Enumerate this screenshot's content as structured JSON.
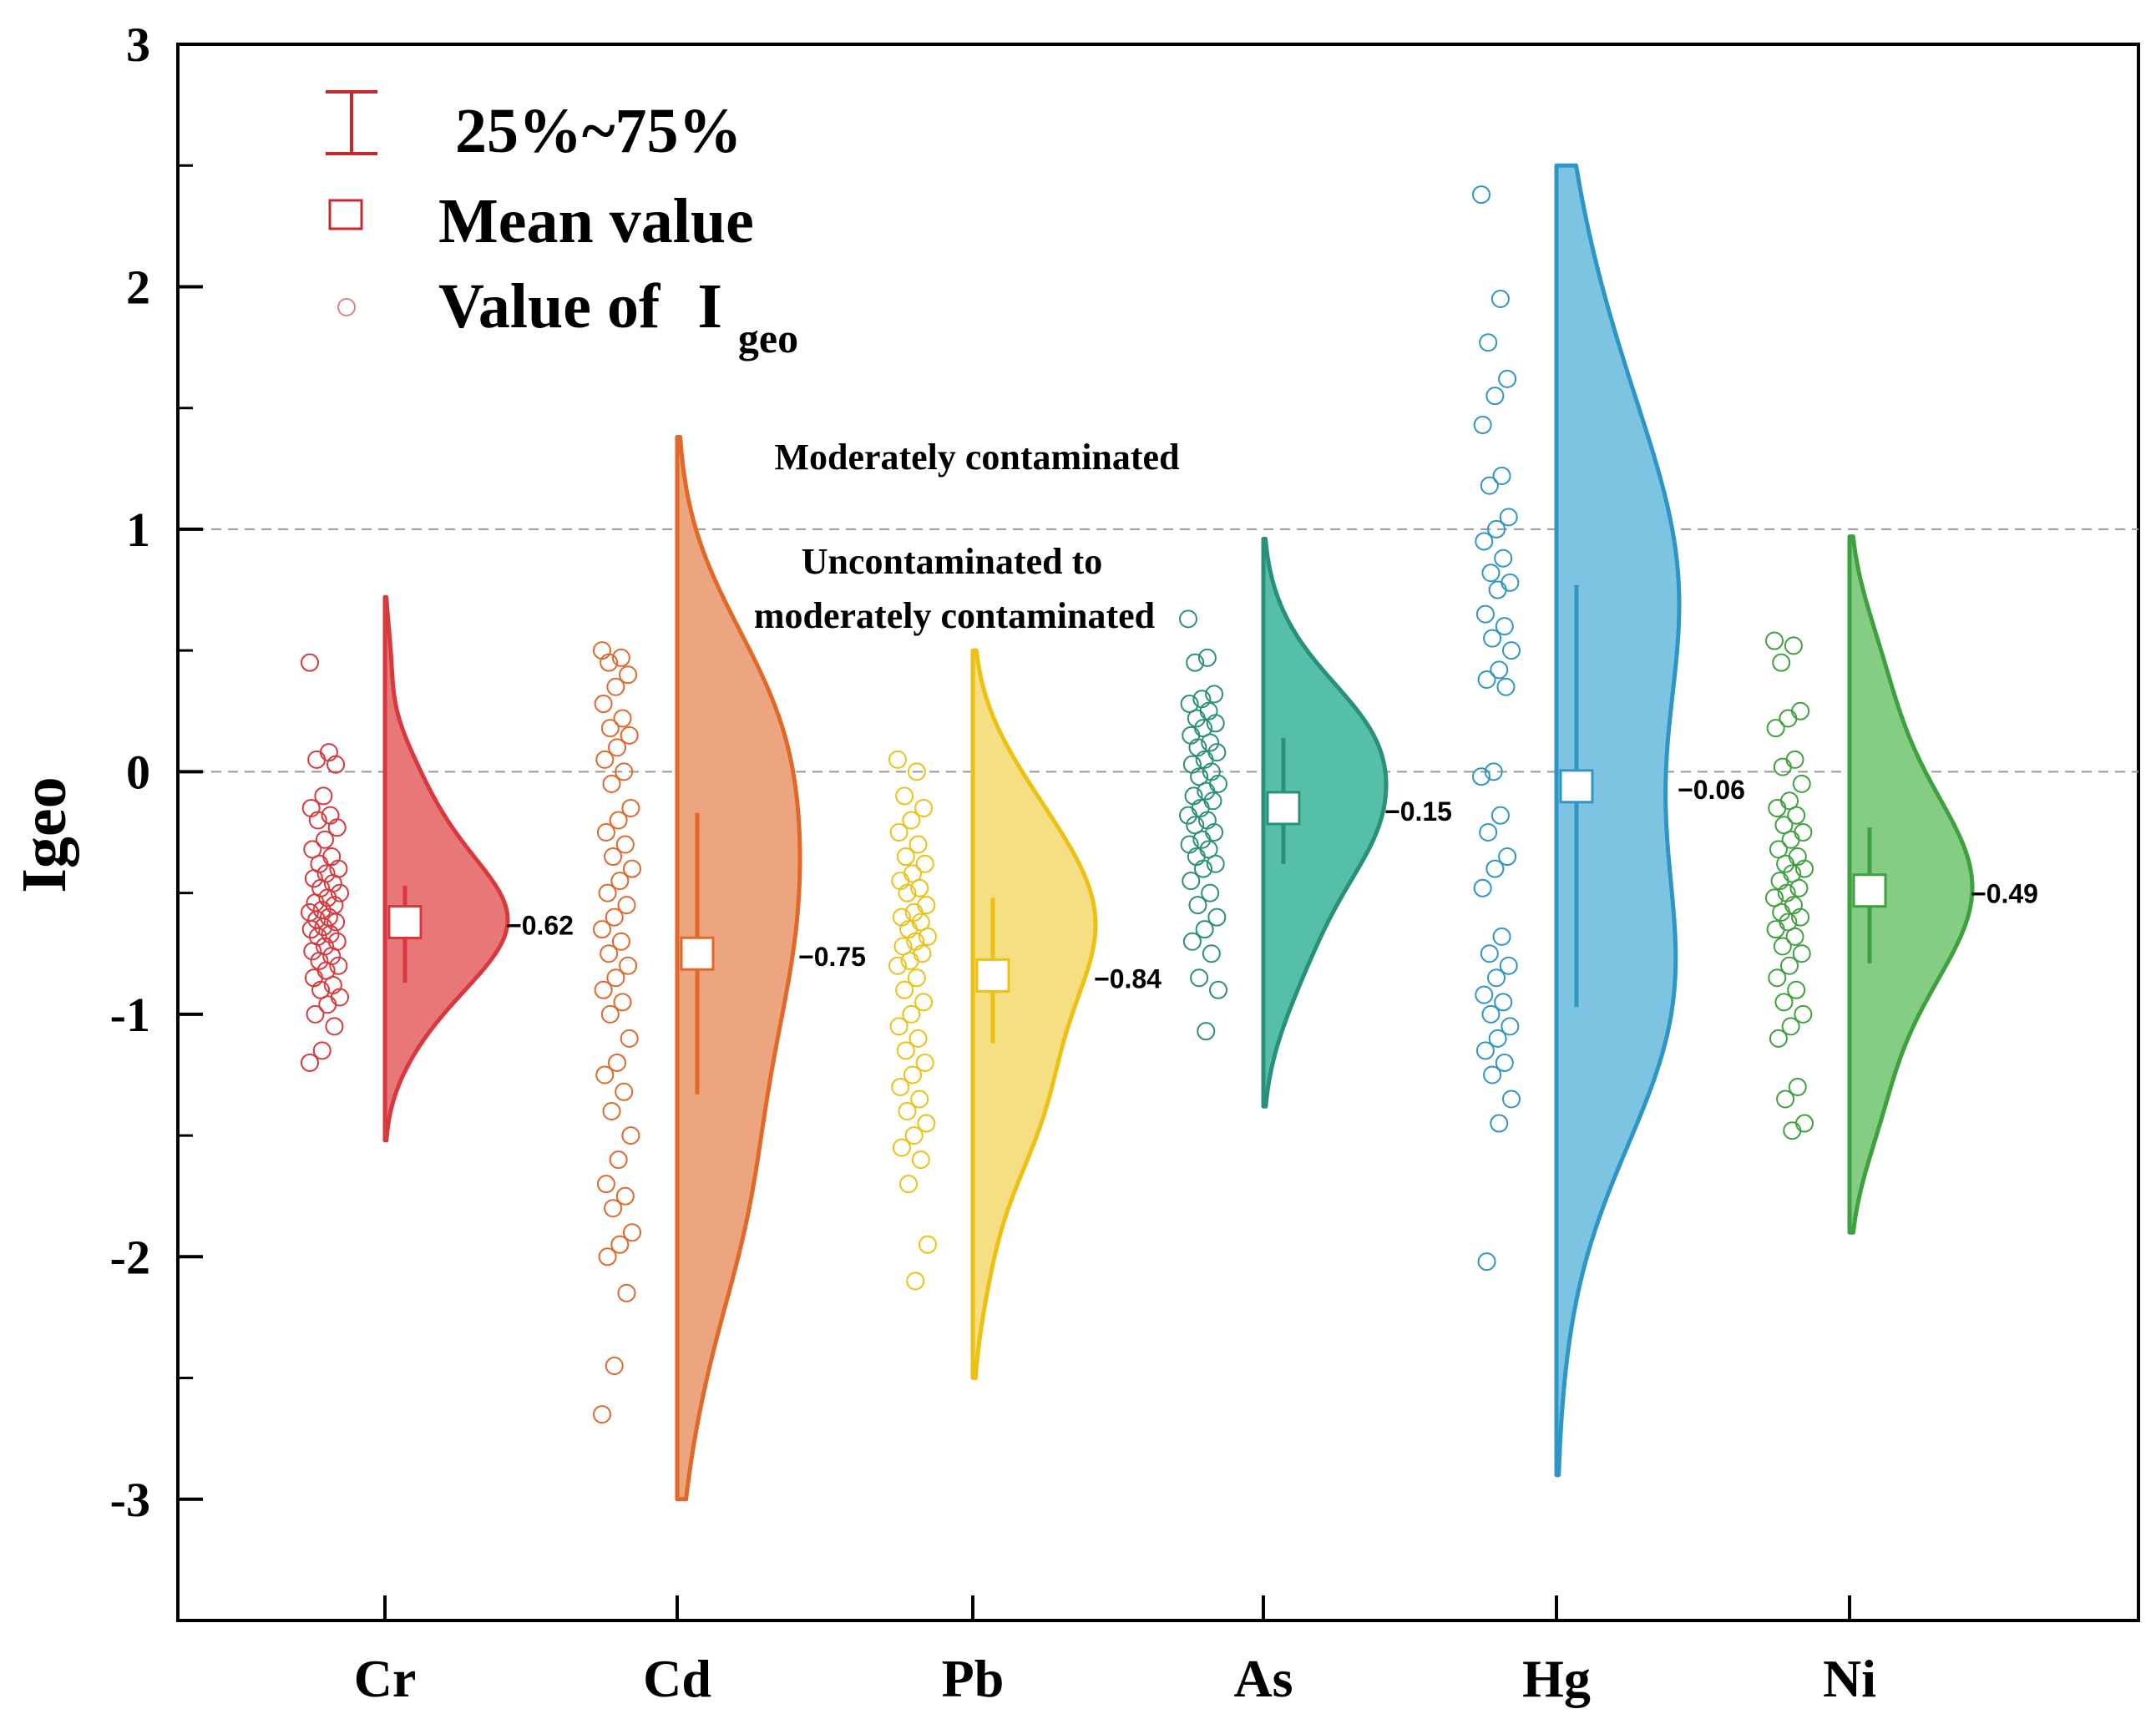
{
  "chart_data": {
    "type": "violin",
    "ylabel": "Igeo",
    "ylim": [
      -3.5,
      3
    ],
    "yticks": [
      -3,
      -2,
      -1,
      0,
      1,
      2,
      3
    ],
    "reference_lines": [
      0,
      1
    ],
    "annotations": {
      "moderate": "Moderately contaminated",
      "uncontaminated_line1": "Uncontaminated to",
      "uncontaminated_line2": "moderately contaminated"
    },
    "legend": {
      "range_label": "25%~75%",
      "mean_label": "Mean value",
      "value_label_prefix": "Value of",
      "value_label_base": "I",
      "value_label_sub": "geo"
    },
    "categories": [
      "Cr",
      "Cd",
      "Pb",
      "As",
      "Hg",
      "Ni"
    ],
    "series": [
      {
        "name": "Cr",
        "mean": -0.62,
        "mean_label": "−0.62",
        "q1": -0.87,
        "q3": -0.47,
        "min": -1.52,
        "max": 0.72,
        "color": "#d7393c",
        "fill": "#e8777a",
        "points": [
          0.45,
          0.08,
          0.05,
          0.03,
          -0.1,
          -0.15,
          -0.18,
          -0.2,
          -0.23,
          -0.28,
          -0.32,
          -0.35,
          -0.38,
          -0.4,
          -0.42,
          -0.44,
          -0.46,
          -0.48,
          -0.5,
          -0.52,
          -0.54,
          -0.55,
          -0.57,
          -0.58,
          -0.6,
          -0.61,
          -0.62,
          -0.64,
          -0.65,
          -0.67,
          -0.68,
          -0.7,
          -0.72,
          -0.74,
          -0.76,
          -0.78,
          -0.8,
          -0.82,
          -0.85,
          -0.88,
          -0.9,
          -0.93,
          -0.96,
          -1.0,
          -1.05,
          -1.15,
          -1.2
        ]
      },
      {
        "name": "Cd",
        "mean": -0.75,
        "mean_label": "−0.75",
        "q1": -1.33,
        "q3": -0.17,
        "min": -3.0,
        "max": 1.38,
        "color": "#e0692a",
        "fill": "#eda57f",
        "points": [
          0.5,
          0.47,
          0.45,
          0.4,
          0.35,
          0.28,
          0.22,
          0.18,
          0.15,
          0.1,
          0.05,
          0.0,
          -0.05,
          -0.15,
          -0.2,
          -0.25,
          -0.3,
          -0.35,
          -0.4,
          -0.45,
          -0.5,
          -0.55,
          -0.6,
          -0.65,
          -0.7,
          -0.75,
          -0.8,
          -0.85,
          -0.9,
          -0.95,
          -1.0,
          -1.1,
          -1.2,
          -1.25,
          -1.32,
          -1.4,
          -1.5,
          -1.6,
          -1.7,
          -1.75,
          -1.8,
          -1.9,
          -1.95,
          -2.0,
          -2.15,
          -2.45,
          -2.65
        ]
      },
      {
        "name": "Pb",
        "mean": -0.84,
        "mean_label": "−0.84",
        "q1": -1.12,
        "q3": -0.52,
        "min": -2.5,
        "max": 0.5,
        "color": "#ecc114",
        "fill": "#f5df82",
        "points": [
          0.05,
          0.0,
          -0.1,
          -0.15,
          -0.2,
          -0.25,
          -0.3,
          -0.35,
          -0.38,
          -0.42,
          -0.45,
          -0.48,
          -0.5,
          -0.55,
          -0.58,
          -0.6,
          -0.62,
          -0.65,
          -0.68,
          -0.7,
          -0.72,
          -0.75,
          -0.78,
          -0.8,
          -0.85,
          -0.9,
          -0.95,
          -1.0,
          -1.05,
          -1.1,
          -1.15,
          -1.2,
          -1.25,
          -1.3,
          -1.35,
          -1.4,
          -1.45,
          -1.5,
          -1.55,
          -1.6,
          -1.7,
          -1.95,
          -2.1
        ]
      },
      {
        "name": "As",
        "mean": -0.15,
        "mean_label": "−0.15",
        "q1": -0.38,
        "q3": 0.14,
        "min": -1.38,
        "max": 0.96,
        "color": "#2a8f7b",
        "fill": "#55bfa8",
        "points": [
          0.63,
          0.47,
          0.45,
          0.32,
          0.3,
          0.28,
          0.25,
          0.22,
          0.2,
          0.18,
          0.15,
          0.12,
          0.1,
          0.08,
          0.05,
          0.03,
          0.0,
          -0.02,
          -0.05,
          -0.08,
          -0.1,
          -0.12,
          -0.15,
          -0.18,
          -0.2,
          -0.22,
          -0.25,
          -0.28,
          -0.3,
          -0.32,
          -0.35,
          -0.38,
          -0.4,
          -0.45,
          -0.5,
          -0.55,
          -0.6,
          -0.65,
          -0.7,
          -0.75,
          -0.85,
          -0.9,
          -1.07
        ]
      },
      {
        "name": "Hg",
        "mean": -0.06,
        "mean_label": "−0.06",
        "q1": -0.97,
        "q3": 0.77,
        "min": -2.9,
        "max": 2.5,
        "color": "#2e96c4",
        "fill": "#7cc4e2",
        "points": [
          2.38,
          1.95,
          1.77,
          1.62,
          1.55,
          1.43,
          1.22,
          1.18,
          1.05,
          1.0,
          0.95,
          0.88,
          0.82,
          0.78,
          0.75,
          0.65,
          0.6,
          0.55,
          0.5,
          0.42,
          0.38,
          0.35,
          0.0,
          -0.02,
          -0.18,
          -0.25,
          -0.35,
          -0.4,
          -0.48,
          -0.68,
          -0.75,
          -0.8,
          -0.85,
          -0.92,
          -0.95,
          -1.0,
          -1.05,
          -1.1,
          -1.15,
          -1.2,
          -1.25,
          -1.35,
          -1.45,
          -2.02
        ]
      },
      {
        "name": "Ni",
        "mean": -0.49,
        "mean_label": "−0.49",
        "q1": -0.79,
        "q3": -0.23,
        "min": -1.9,
        "max": 0.97,
        "color": "#3ea03e",
        "fill": "#85cc85",
        "points": [
          0.54,
          0.52,
          0.45,
          0.25,
          0.22,
          0.18,
          0.05,
          0.02,
          -0.05,
          -0.12,
          -0.15,
          -0.18,
          -0.22,
          -0.25,
          -0.28,
          -0.32,
          -0.35,
          -0.38,
          -0.4,
          -0.42,
          -0.45,
          -0.48,
          -0.5,
          -0.52,
          -0.55,
          -0.58,
          -0.6,
          -0.62,
          -0.65,
          -0.68,
          -0.72,
          -0.75,
          -0.8,
          -0.85,
          -0.9,
          -0.95,
          -1.0,
          -1.05,
          -1.1,
          -1.3,
          -1.35,
          -1.45,
          -1.48
        ]
      }
    ]
  }
}
